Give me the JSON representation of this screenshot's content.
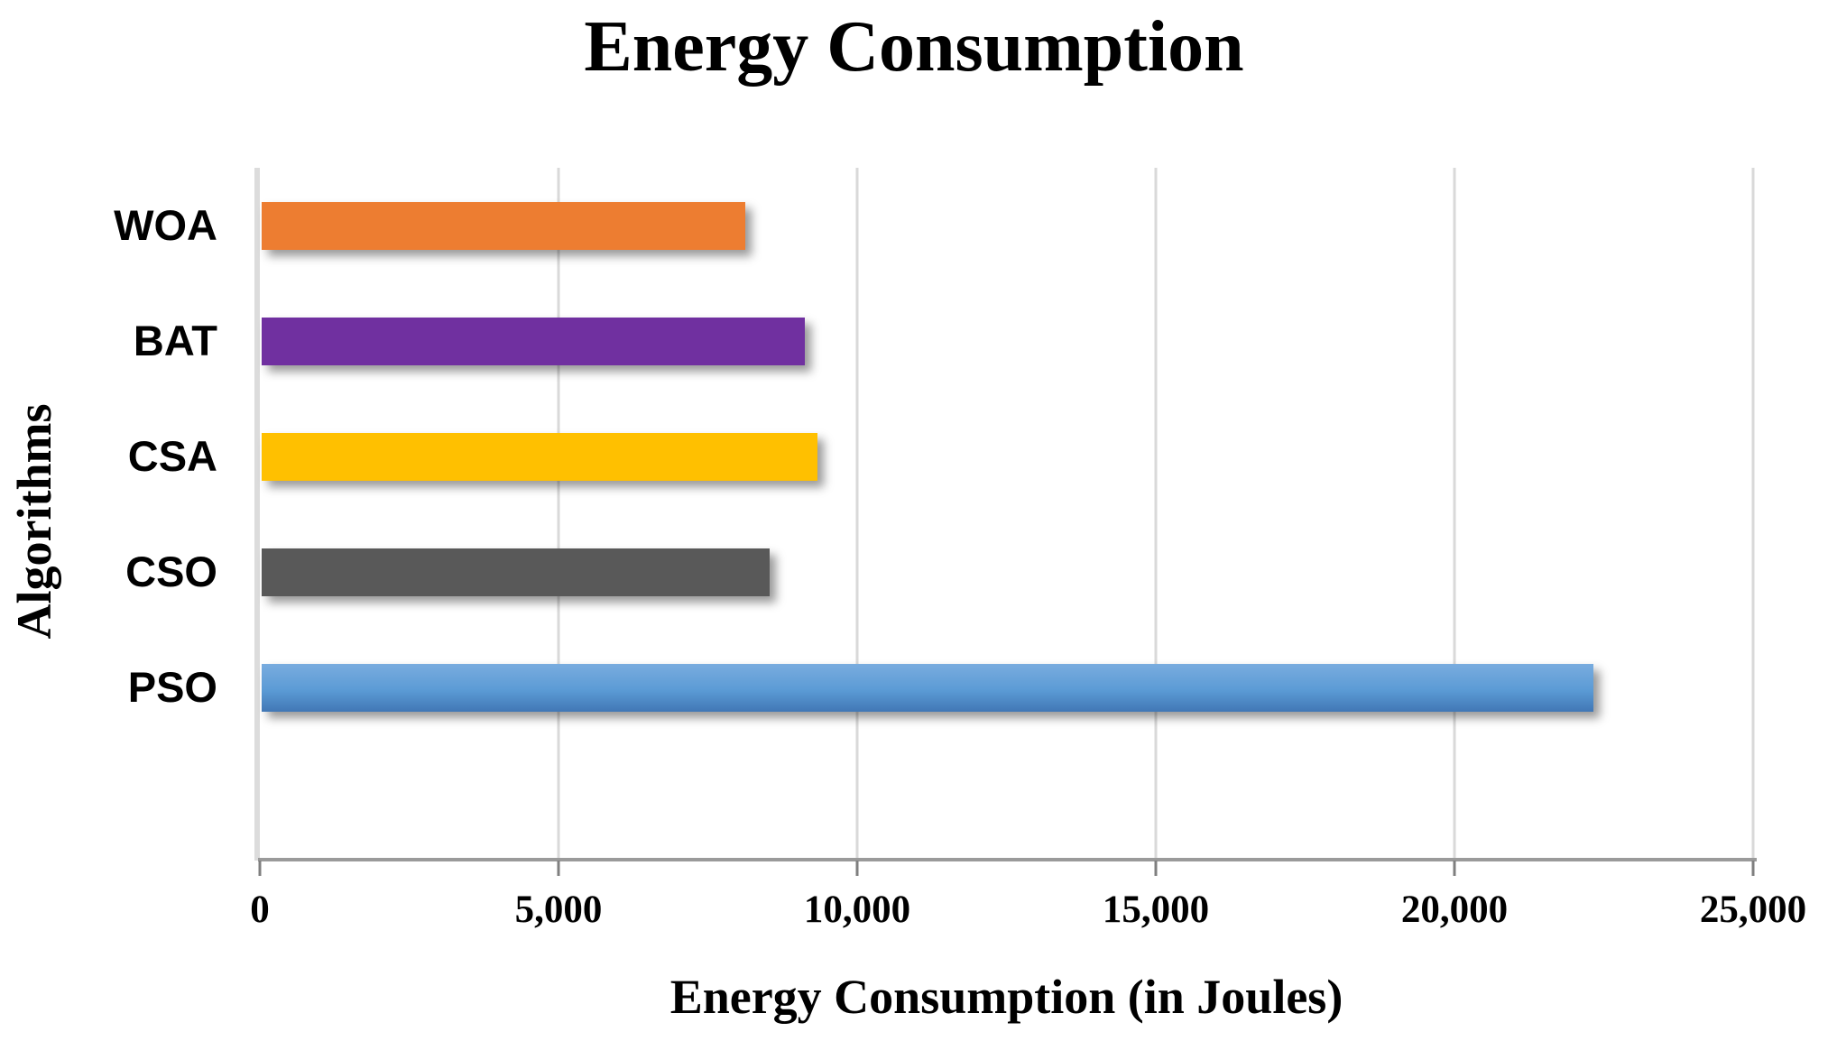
{
  "title": "Energy Consumption",
  "chart_data": {
    "type": "bar",
    "orientation": "horizontal",
    "title": "Energy Consumption",
    "xlabel": "Energy Consumption (in Joules)",
    "ylabel": "Algorithms",
    "categories": [
      "WOA",
      "BAT",
      "CSA",
      "CSO",
      "PSO"
    ],
    "values": [
      8100,
      9100,
      9300,
      8500,
      22300
    ],
    "bar_colors": [
      "#ED7D31",
      "#7030A0",
      "#FFC000",
      "#595959",
      [
        "#79ACDF",
        "#5B9BD5",
        "#4177B5"
      ]
    ],
    "xlim": [
      0,
      25000
    ],
    "xticks": [
      0,
      5000,
      10000,
      15000,
      20000,
      25000
    ],
    "xtick_labels": [
      "0",
      "5,000",
      "10,000",
      "15,000",
      "20,000",
      "25,000"
    ],
    "grid": true,
    "legend": false
  },
  "colors": {
    "gridline": "#D9D9D9",
    "y_axis_line": "#DCDCDC",
    "x_axis_line": "#9A9A9A",
    "tick_mark": "#7F7F7F",
    "text": "#000000",
    "background": "#FFFFFF"
  }
}
